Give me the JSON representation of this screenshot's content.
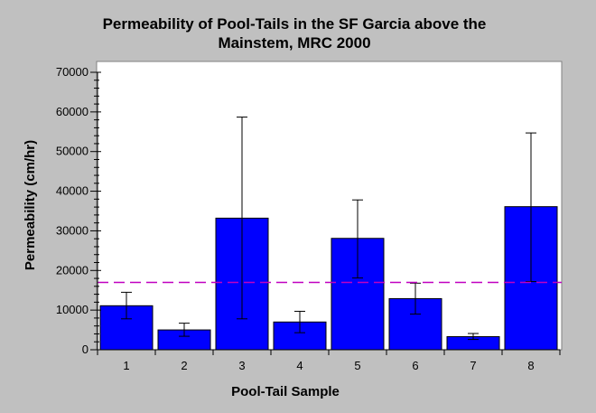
{
  "chart_data": {
    "type": "bar",
    "title_lines": [
      "Permeability of Pool-Tails in the SF Garcia above the",
      "Mainstem, MRC 2000"
    ],
    "xlabel": "Pool-Tail Sample",
    "ylabel": "Permeability (cm/hr)",
    "categories": [
      "1",
      "2",
      "3",
      "4",
      "5",
      "6",
      "7",
      "8"
    ],
    "values": [
      11100,
      5000,
      33200,
      7000,
      28100,
      12900,
      3300,
      36100
    ],
    "error_low": [
      7800,
      3400,
      7800,
      4300,
      18100,
      9000,
      2600,
      17200
    ],
    "error_high": [
      14500,
      6700,
      58700,
      9700,
      37800,
      16800,
      4100,
      54700
    ],
    "reference_line": 17000,
    "ylim": [
      0,
      70000
    ],
    "yticks": [
      0,
      10000,
      20000,
      30000,
      40000,
      50000,
      60000,
      70000
    ],
    "ytick_labels": [
      "0",
      "10000",
      "20000",
      "30000",
      "40000",
      "50000",
      "60000",
      "70000"
    ],
    "grid": false,
    "colors": {
      "bar": "#0000ff",
      "reference_line": "#c000c0",
      "background": "#c0c0c0",
      "plot_background": "#ffffff"
    }
  }
}
